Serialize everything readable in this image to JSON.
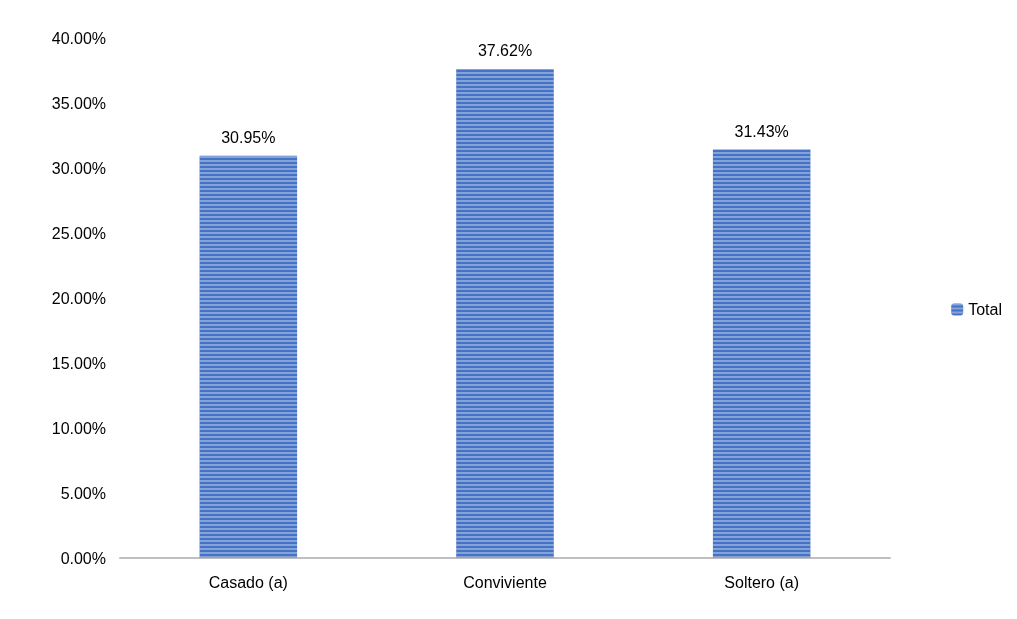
{
  "chart_data": {
    "type": "bar",
    "categories": [
      "Casado (a)",
      "Conviviente",
      "Soltero (a)"
    ],
    "series": [
      {
        "name": "Total",
        "color": "#4472c4",
        "values": [
          30.95,
          37.62,
          31.43
        ],
        "value_labels": [
          "30.95%",
          "37.62%",
          "31.43%"
        ]
      }
    ],
    "ylim": [
      0,
      40
    ],
    "yticks": [
      {
        "value": 0,
        "label": "0.00%"
      },
      {
        "value": 5,
        "label": "5.00%"
      },
      {
        "value": 10,
        "label": "10.00%"
      },
      {
        "value": 15,
        "label": "15.00%"
      },
      {
        "value": 20,
        "label": "20.00%"
      },
      {
        "value": 25,
        "label": "25.00%"
      },
      {
        "value": 30,
        "label": "30.00%"
      },
      {
        "value": 35,
        "label": "35.00%"
      },
      {
        "value": 40,
        "label": "40.00%"
      }
    ],
    "grid": false,
    "legend": "right"
  }
}
